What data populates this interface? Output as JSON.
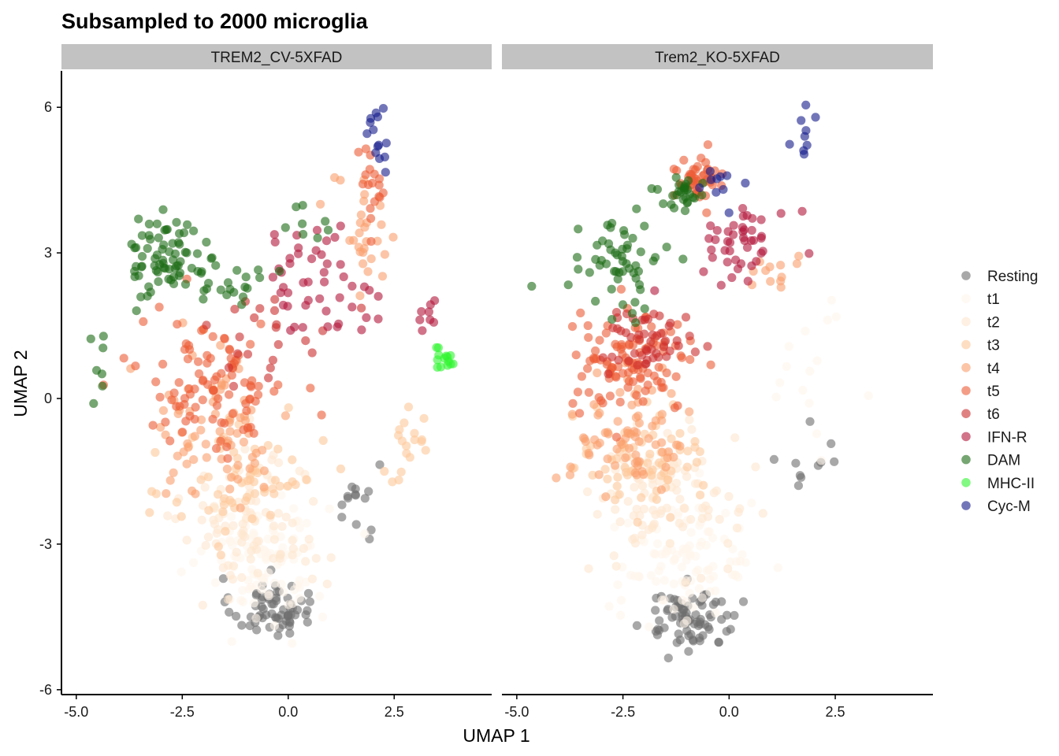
{
  "chart_data": {
    "type": "scatter",
    "title": "Subsampled to 2000 microglia",
    "xlabel": "UMAP 1",
    "ylabel": "UMAP 2",
    "xlim": [
      -5.35,
      4.8
    ],
    "ylim": [
      -6.1,
      6.75
    ],
    "x_ticks": [
      -5.0,
      -2.5,
      0.0,
      2.5
    ],
    "x_tick_labels": [
      "-5.0",
      "-2.5",
      "0.0",
      "2.5"
    ],
    "y_ticks": [
      6,
      3,
      0,
      -3,
      -6
    ],
    "y_tick_labels": [
      "6",
      "3",
      "0",
      "-3",
      "-6"
    ],
    "grid": false,
    "legend_position": "right",
    "point_alpha": 0.6,
    "legend": [
      {
        "name": "Resting",
        "color": "#6e6e6e"
      },
      {
        "name": "t1",
        "color": "#fff5eb"
      },
      {
        "name": "t2",
        "color": "#fee6ce"
      },
      {
        "name": "t3",
        "color": "#fdc89a"
      },
      {
        "name": "t4",
        "color": "#fa9f6c"
      },
      {
        "name": "t5",
        "color": "#ec5c36"
      },
      {
        "name": "t6",
        "color": "#cc2d2d"
      },
      {
        "name": "IFN-R",
        "color": "#b3153a"
      },
      {
        "name": "DAM",
        "color": "#1a6b14"
      },
      {
        "name": "MHC-II",
        "color": "#2ff52f"
      },
      {
        "name": "Cyc-M",
        "color": "#141a8a"
      }
    ],
    "panels": [
      {
        "name": "TREM2_CV-5XFAD",
        "clusters": [
          {
            "series": "Resting",
            "n": 65,
            "cx": -0.4,
            "cy": -4.3,
            "sx": 0.85,
            "sy": 0.55
          },
          {
            "series": "Resting",
            "n": 14,
            "cx": 1.6,
            "cy": -2.2,
            "sx": 0.5,
            "sy": 0.9
          },
          {
            "series": "t1",
            "n": 95,
            "cx": -0.5,
            "cy": -3.3,
            "sx": 1.3,
            "sy": 1.2
          },
          {
            "series": "t2",
            "n": 100,
            "cx": -0.8,
            "cy": -2.5,
            "sx": 1.5,
            "sy": 1.4
          },
          {
            "series": "t3",
            "n": 60,
            "cx": -1.0,
            "cy": -1.7,
            "sx": 1.6,
            "sy": 1.4
          },
          {
            "series": "t3",
            "n": 18,
            "cx": 2.8,
            "cy": -1.0,
            "sx": 0.6,
            "sy": 0.8
          },
          {
            "series": "t4",
            "n": 75,
            "cx": -1.6,
            "cy": -0.6,
            "sx": 1.5,
            "sy": 1.4
          },
          {
            "series": "t4",
            "n": 28,
            "cx": 1.8,
            "cy": 3.3,
            "sx": 0.7,
            "sy": 1.2
          },
          {
            "series": "t5",
            "n": 95,
            "cx": -1.8,
            "cy": 0.3,
            "sx": 1.6,
            "sy": 1.3
          },
          {
            "series": "t5",
            "n": 18,
            "cx": 2.0,
            "cy": 4.5,
            "sx": 0.4,
            "sy": 0.7
          },
          {
            "series": "t6",
            "n": 22,
            "cx": -0.5,
            "cy": 1.3,
            "sx": 1.4,
            "sy": 1.0
          },
          {
            "series": "IFN-R",
            "n": 48,
            "cx": 0.6,
            "cy": 2.5,
            "sx": 1.3,
            "sy": 1.0
          },
          {
            "series": "IFN-R",
            "n": 8,
            "cx": 3.3,
            "cy": 1.6,
            "sx": 0.2,
            "sy": 0.3
          },
          {
            "series": "DAM",
            "n": 70,
            "cx": -2.9,
            "cy": 2.9,
            "sx": 0.8,
            "sy": 0.8
          },
          {
            "series": "DAM",
            "n": 22,
            "cx": -1.3,
            "cy": 2.5,
            "sx": 0.7,
            "sy": 0.8
          },
          {
            "series": "DAM",
            "n": 8,
            "cx": 0.5,
            "cy": 3.6,
            "sx": 0.5,
            "sy": 0.4
          },
          {
            "series": "DAM",
            "n": 7,
            "cx": -4.5,
            "cy": 0.6,
            "sx": 0.3,
            "sy": 0.7
          },
          {
            "series": "MHC-II",
            "n": 14,
            "cx": 3.7,
            "cy": 0.9,
            "sx": 0.3,
            "sy": 0.35
          },
          {
            "series": "Cyc-M",
            "n": 14,
            "cx": 2.1,
            "cy": 5.3,
            "sx": 0.3,
            "sy": 0.6
          }
        ]
      },
      {
        "name": "Trem2_KO-5XFAD",
        "clusters": [
          {
            "series": "Resting",
            "n": 80,
            "cx": -0.9,
            "cy": -4.5,
            "sx": 1.0,
            "sy": 0.55
          },
          {
            "series": "Resting",
            "n": 10,
            "cx": 1.7,
            "cy": -1.5,
            "sx": 0.9,
            "sy": 1.3
          },
          {
            "series": "t1",
            "n": 100,
            "cx": -1.0,
            "cy": -3.4,
            "sx": 1.5,
            "sy": 1.2
          },
          {
            "series": "t1",
            "n": 15,
            "cx": 2.0,
            "cy": 0.5,
            "sx": 0.8,
            "sy": 1.2
          },
          {
            "series": "t2",
            "n": 100,
            "cx": -1.5,
            "cy": -2.0,
            "sx": 1.5,
            "sy": 1.2
          },
          {
            "series": "t3",
            "n": 70,
            "cx": -2.1,
            "cy": -1.3,
            "sx": 1.3,
            "sy": 1.0
          },
          {
            "series": "t4",
            "n": 75,
            "cx": -2.3,
            "cy": -0.7,
            "sx": 1.3,
            "sy": 1.0
          },
          {
            "series": "t4",
            "n": 12,
            "cx": 1.0,
            "cy": 2.6,
            "sx": 0.8,
            "sy": 0.6
          },
          {
            "series": "t5",
            "n": 105,
            "cx": -2.3,
            "cy": 0.7,
            "sx": 1.3,
            "sy": 0.9
          },
          {
            "series": "t5",
            "n": 45,
            "cx": -0.7,
            "cy": 4.5,
            "sx": 0.55,
            "sy": 0.4
          },
          {
            "series": "t6",
            "n": 50,
            "cx": -2.0,
            "cy": 1.2,
            "sx": 1.1,
            "sy": 0.6
          },
          {
            "series": "IFN-R",
            "n": 45,
            "cx": 0.4,
            "cy": 3.3,
            "sx": 1.0,
            "sy": 0.7
          },
          {
            "series": "DAM",
            "n": 55,
            "cx": -2.6,
            "cy": 2.7,
            "sx": 0.9,
            "sy": 0.8
          },
          {
            "series": "DAM",
            "n": 28,
            "cx": -1.1,
            "cy": 4.2,
            "sx": 0.5,
            "sy": 0.35
          },
          {
            "series": "Cyc-M",
            "n": 10,
            "cx": -0.3,
            "cy": 4.3,
            "sx": 0.5,
            "sy": 0.6
          },
          {
            "series": "Cyc-M",
            "n": 9,
            "cx": 1.8,
            "cy": 5.6,
            "sx": 0.3,
            "sy": 0.5
          }
        ]
      }
    ]
  }
}
